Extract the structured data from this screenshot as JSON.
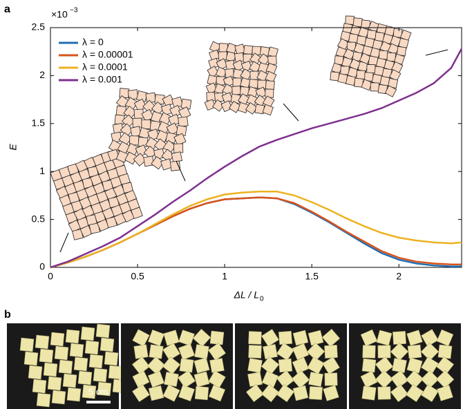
{
  "chart_data": {
    "type": "line",
    "panel_labels": [
      "a",
      "b"
    ],
    "y_scale_label": {
      "base": "×10",
      "exponent": "−3"
    },
    "x_label": {
      "main": "ΔL / L",
      "sub": "0"
    },
    "y_label": "E",
    "x": [
      0,
      0.1,
      0.2,
      0.3,
      0.4,
      0.5,
      0.6,
      0.7,
      0.8,
      0.9,
      1.0,
      1.1,
      1.2,
      1.3,
      1.4,
      1.5,
      1.6,
      1.7,
      1.8,
      1.9,
      2.0,
      2.1,
      2.2,
      2.3,
      2.36
    ],
    "series": [
      {
        "name": "λ = 0",
        "color": "#1f6fb4",
        "values": [
          0,
          0.05,
          0.11,
          0.18,
          0.26,
          0.35,
          0.44,
          0.53,
          0.61,
          0.67,
          0.71,
          0.72,
          0.73,
          0.72,
          0.66,
          0.57,
          0.47,
          0.36,
          0.25,
          0.15,
          0.08,
          0.04,
          0.02,
          0.01,
          0.01
        ]
      },
      {
        "name": "λ = 0.00001",
        "color": "#d95319",
        "values": [
          0,
          0.05,
          0.11,
          0.18,
          0.26,
          0.35,
          0.44,
          0.53,
          0.61,
          0.67,
          0.71,
          0.72,
          0.73,
          0.72,
          0.67,
          0.58,
          0.48,
          0.37,
          0.27,
          0.17,
          0.1,
          0.06,
          0.04,
          0.03,
          0.03
        ]
      },
      {
        "name": "λ = 0.0001",
        "color": "#edb120",
        "values": [
          0,
          0.05,
          0.11,
          0.18,
          0.26,
          0.35,
          0.45,
          0.55,
          0.64,
          0.71,
          0.76,
          0.78,
          0.79,
          0.79,
          0.75,
          0.68,
          0.6,
          0.51,
          0.43,
          0.36,
          0.31,
          0.28,
          0.26,
          0.25,
          0.26
        ]
      },
      {
        "name": "λ = 0.001",
        "color": "#7e2f8e",
        "values": [
          0,
          0.06,
          0.14,
          0.22,
          0.31,
          0.43,
          0.55,
          0.68,
          0.8,
          0.93,
          1.05,
          1.16,
          1.26,
          1.33,
          1.39,
          1.45,
          1.5,
          1.55,
          1.6,
          1.66,
          1.74,
          1.82,
          1.92,
          2.08,
          2.28
        ]
      }
    ],
    "xlim": [
      0,
      2.36
    ],
    "ylim": [
      0,
      2.5
    ],
    "xticks": [
      0,
      0.5,
      1,
      1.5,
      2
    ],
    "yticks": [
      0,
      0.5,
      1,
      1.5,
      2,
      2.5
    ],
    "legend": "upper left",
    "scale_bar_label": "5 cm"
  }
}
